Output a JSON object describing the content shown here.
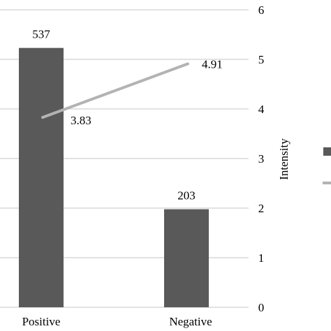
{
  "chart_data": {
    "type": "bar",
    "categories": [
      "Positive",
      "Negative"
    ],
    "series": [
      {
        "type": "bar",
        "values": [
          537,
          203
        ],
        "color": "#595959"
      },
      {
        "type": "line",
        "values": [
          3.83,
          4.91
        ],
        "color": "#b3b3b3"
      }
    ],
    "y2label": "Intensity",
    "y2lim": [
      0,
      6
    ],
    "y2ticks": [
      "0",
      "1",
      "2",
      "3",
      "4",
      "5",
      "6"
    ],
    "bar_labels": [
      "537",
      "203"
    ],
    "line_labels": [
      "3.83",
      "4.91"
    ],
    "gridlines": true,
    "legend_position": "right"
  }
}
